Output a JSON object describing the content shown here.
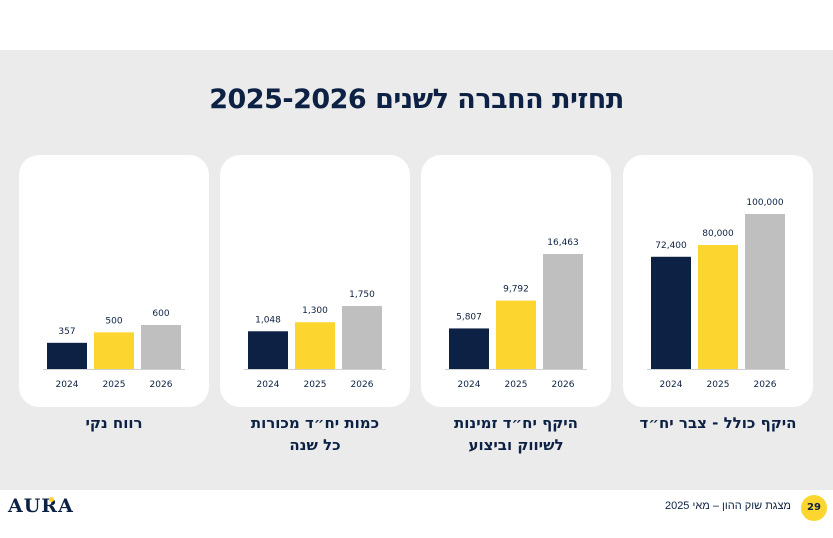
{
  "title": "תחזית החברה לשנים 2025-2026",
  "colors": {
    "2024": "#0c2143",
    "2025": "#fcd62e",
    "2026": "#bfbfbf"
  },
  "chart_data": [
    {
      "type": "bar",
      "title": "היקף כולל - צבר יח״ד",
      "categories": [
        "2024",
        "2025",
        "2026"
      ],
      "values": [
        72400,
        80000,
        100000
      ],
      "labels": [
        "72,400",
        "80,000",
        "100,000"
      ],
      "ylim": [
        0,
        100000
      ]
    },
    {
      "type": "bar",
      "title": "היקף יח״ד זמינות לשיווק וביצוע",
      "categories": [
        "2024",
        "2025",
        "2026"
      ],
      "values": [
        5807,
        9792,
        16463
      ],
      "labels": [
        "5,807",
        "9,792",
        "16,463"
      ],
      "ylim": [
        0,
        16463
      ]
    },
    {
      "type": "bar",
      "title": "כמות יח״ד מכורות כל שנה",
      "categories": [
        "2024",
        "2025",
        "2026"
      ],
      "values": [
        1048,
        1300,
        1750
      ],
      "labels": [
        "1,048",
        "1,300",
        "1,750"
      ],
      "ylim": [
        0,
        1750
      ]
    },
    {
      "type": "bar",
      "title": "רווח נקי",
      "categories": [
        "2024",
        "2025",
        "2026"
      ],
      "values": [
        357,
        500,
        600
      ],
      "labels": [
        "357",
        "500",
        "600"
      ],
      "ylim": [
        0,
        600
      ]
    }
  ],
  "captions": [
    [
      "היקף כולל - צבר יח״ד"
    ],
    [
      "היקף יח״ד זמינות",
      "לשיווק וביצוע"
    ],
    [
      "כמות יח״ד מכורות",
      "כל שנה"
    ],
    [
      "רווח נקי"
    ]
  ],
  "footer": {
    "text": "מצגת שוק ההון – מאי 2025",
    "page": "29"
  },
  "logo": "AURA"
}
